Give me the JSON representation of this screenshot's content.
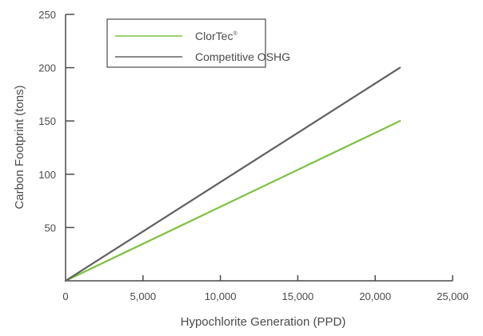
{
  "chart_data": {
    "type": "line",
    "xlabel": "Hypochlorite Generation (PPD)",
    "ylabel": "Carbon Footprint (tons)",
    "xlim": [
      0,
      25000
    ],
    "ylim": [
      0,
      250
    ],
    "x_ticks": [
      0,
      5000,
      10000,
      15000,
      20000,
      25000
    ],
    "x_tick_labels": [
      "0",
      "5,000",
      "10,000",
      "15,000",
      "20,000",
      "25,000"
    ],
    "y_ticks": [
      50,
      100,
      150,
      200,
      250
    ],
    "y_tick_labels": [
      "50",
      "100",
      "150",
      "200",
      "250"
    ],
    "grid": false,
    "legend_position": "top-left",
    "series": [
      {
        "name": "ClorTec",
        "name_superscript": "®",
        "color": "#7dc242",
        "x": [
          0,
          21600
        ],
        "y": [
          0,
          150
        ]
      },
      {
        "name": "Competitive OSHG",
        "color": "#5f6062",
        "x": [
          0,
          21600
        ],
        "y": [
          0,
          200
        ]
      }
    ]
  }
}
